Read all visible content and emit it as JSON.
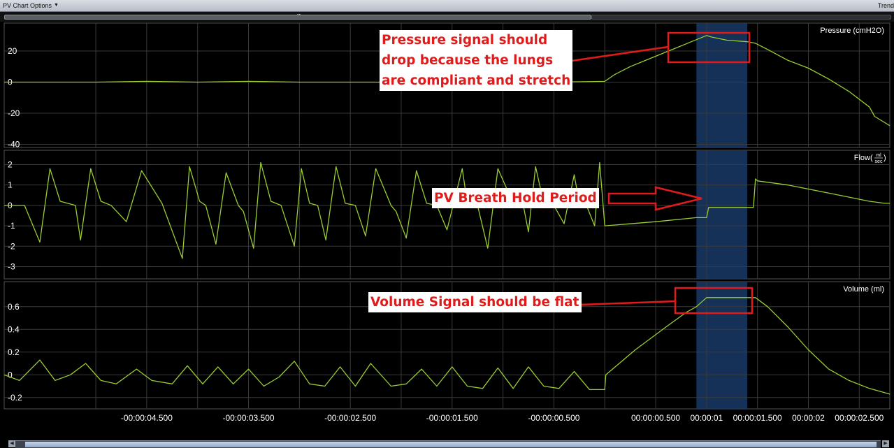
{
  "toolbar": {
    "menu_label": "PV Chart Options",
    "right_label": "Trend"
  },
  "annotations": {
    "pressure_note": [
      "Pressure signal should",
      "drop because the lungs",
      "are compliant and stretch"
    ],
    "flow_note": "PV Breath Hold Period",
    "volume_note": "Volume Signal should be flat"
  },
  "colors": {
    "trace": "#9acd32",
    "highlight_band": "#1a3a66",
    "annotation_red": "#e01b1b",
    "grid": "#3a3a3a"
  },
  "chart_data": [
    {
      "type": "line",
      "title": "Pressure (cmH2O)",
      "ylim": [
        -42,
        38
      ],
      "yticks": [
        20,
        0,
        -20,
        -40
      ],
      "x": [
        -5.9,
        -5.5,
        -5.0,
        -4.5,
        -4.0,
        -3.5,
        -3.0,
        -2.5,
        -2.0,
        -1.5,
        -1.0,
        -0.5,
        0.0,
        0.1,
        0.25,
        0.4,
        0.55,
        0.7,
        0.85,
        1.0,
        1.05,
        1.2,
        1.4,
        1.48,
        1.6,
        1.8,
        2.0,
        2.2,
        2.4,
        2.6,
        2.65,
        2.8
      ],
      "series": [
        {
          "values": [
            0,
            0,
            0,
            0.5,
            0,
            0.5,
            0,
            0,
            0,
            0,
            0,
            0,
            0.5,
            5,
            10,
            14,
            18,
            22,
            26,
            30,
            29,
            27,
            26,
            25,
            21,
            14,
            9,
            2,
            -6,
            -16,
            -22,
            -28
          ]
        }
      ]
    },
    {
      "type": "line",
      "title": "Flow",
      "title_unit_num": "ml",
      "title_unit_den": "sec",
      "ylim": [
        -3.6,
        2.7
      ],
      "yticks": [
        2,
        1,
        0,
        -1,
        -2,
        -3
      ],
      "x": [
        -5.9,
        -5.7,
        -5.55,
        -5.45,
        -5.35,
        -5.2,
        -5.15,
        -5.05,
        -4.95,
        -4.85,
        -4.7,
        -4.55,
        -4.35,
        -4.15,
        -4.08,
        -3.98,
        -3.92,
        -3.82,
        -3.72,
        -3.6,
        -3.55,
        -3.45,
        -3.38,
        -3.28,
        -3.18,
        -3.05,
        -2.98,
        -2.9,
        -2.82,
        -2.74,
        -2.64,
        -2.55,
        -2.45,
        -2.35,
        -2.25,
        -2.1,
        -2.05,
        -1.95,
        -1.85,
        -1.75,
        -1.65,
        -1.55,
        -1.4,
        -1.35,
        -1.25,
        -1.15,
        -1.05,
        -0.9,
        -0.8,
        -0.75,
        -0.68,
        -0.6,
        -0.5,
        -0.4,
        -0.3,
        -0.25,
        -0.18,
        -0.1,
        -0.05,
        0.0,
        0.5,
        0.9,
        1.0,
        1.02,
        1.46,
        1.48,
        1.5,
        1.8,
        2.2,
        2.6,
        2.75,
        2.8
      ],
      "series": [
        {
          "values": [
            0,
            0,
            -1.8,
            1.8,
            0.2,
            0,
            -1.7,
            1.8,
            0.2,
            0,
            -0.8,
            1.7,
            0.1,
            -2.6,
            1.9,
            0.2,
            0,
            -1.9,
            1.6,
            0,
            -0.3,
            -2.1,
            2.1,
            0.2,
            0,
            -2.0,
            1.8,
            0.1,
            0.0,
            -1.7,
            1.9,
            0.1,
            0,
            -1.5,
            1.8,
            0,
            -0.3,
            -1.6,
            1.7,
            0.1,
            0,
            -1.2,
            1.8,
            0.1,
            0,
            -2.1,
            1.8,
            0.1,
            0,
            -1.3,
            1.9,
            0.1,
            0,
            -0.9,
            1.5,
            0.1,
            0,
            -1.0,
            2.1,
            -1.0,
            -0.8,
            -0.6,
            -0.6,
            -0.1,
            -0.1,
            1.3,
            1.2,
            1.0,
            0.6,
            0.2,
            0.1,
            0.1
          ]
        }
      ]
    },
    {
      "type": "line",
      "title": "Volume (ml)",
      "ylim": [
        -0.3,
        0.82
      ],
      "yticks": [
        0.6,
        0.4,
        0.2,
        0,
        -0.2
      ],
      "x": [
        -5.9,
        -5.75,
        -5.55,
        -5.4,
        -5.25,
        -5.1,
        -4.95,
        -4.8,
        -4.6,
        -4.45,
        -4.25,
        -4.1,
        -3.95,
        -3.8,
        -3.65,
        -3.5,
        -3.35,
        -3.2,
        -3.05,
        -2.9,
        -2.75,
        -2.6,
        -2.45,
        -2.3,
        -2.1,
        -1.95,
        -1.8,
        -1.65,
        -1.5,
        -1.35,
        -1.2,
        -1.05,
        -0.9,
        -0.75,
        -0.6,
        -0.45,
        -0.3,
        -0.15,
        0.0,
        0.01,
        0.3,
        0.6,
        0.8,
        0.9,
        1.0,
        1.2,
        1.48,
        1.6,
        1.8,
        2.0,
        2.2,
        2.4,
        2.6,
        2.8
      ],
      "series": [
        {
          "values": [
            0.0,
            -0.05,
            0.13,
            -0.05,
            0.0,
            0.1,
            -0.05,
            -0.08,
            0.05,
            -0.05,
            -0.08,
            0.08,
            -0.08,
            0.07,
            -0.08,
            0.05,
            -0.1,
            -0.02,
            0.12,
            -0.08,
            -0.1,
            0.07,
            -0.1,
            0.1,
            -0.1,
            -0.08,
            0.05,
            -0.1,
            0.07,
            -0.1,
            -0.12,
            0.06,
            -0.12,
            0.07,
            -0.1,
            -0.12,
            0.03,
            -0.13,
            -0.13,
            0.0,
            0.22,
            0.42,
            0.55,
            0.6,
            0.68,
            0.68,
            0.68,
            0.6,
            0.42,
            0.22,
            0.05,
            -0.05,
            -0.12,
            -0.17
          ]
        }
      ]
    }
  ],
  "x_axis": {
    "xlim": [
      -5.9,
      2.8
    ],
    "ticks": [
      -4.5,
      -3.5,
      -2.5,
      -1.5,
      -0.5,
      0.5,
      1.0,
      1.5,
      2.0,
      2.5
    ],
    "tick_labels": [
      "-00:00:04.500",
      "-00:00:03.500",
      "-00:00:02.500",
      "-00:00:01.500",
      "-00:00:00.500",
      "00:00:00.500",
      "00:00:01",
      "00:00:01.500",
      "00:00:02",
      "00:00:02.500"
    ],
    "minor_gridlines": [
      -5.0,
      -4.0,
      -3.0,
      -2.0,
      -1.0,
      0.0
    ],
    "highlight": [
      0.9,
      1.4
    ]
  }
}
